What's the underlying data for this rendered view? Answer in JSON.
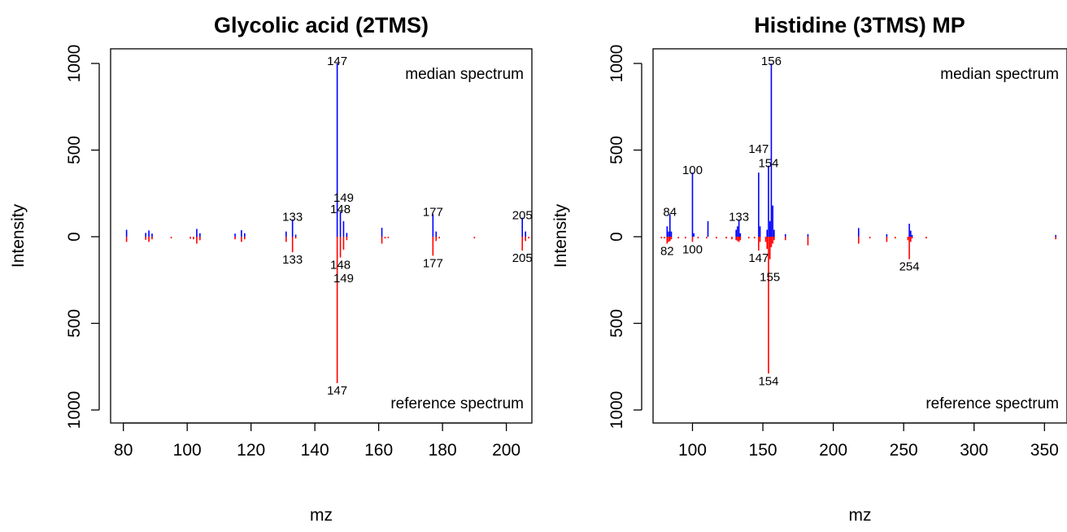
{
  "chart_data": [
    {
      "type": "bar",
      "title": "Glycolic acid (2TMS)",
      "xlabel": "mz",
      "ylabel": "Intensity",
      "xlim": [
        76,
        208
      ],
      "ylim": [
        -1000,
        1000
      ],
      "xticks": [
        80,
        100,
        120,
        140,
        160,
        180,
        200
      ],
      "yticks_top": [
        0,
        500,
        1000
      ],
      "yticks_bottom": [
        500,
        1000
      ],
      "annotations": {
        "top": "median spectrum",
        "bottom": "reference spectrum"
      },
      "series": [
        {
          "name": "median spectrum",
          "color": "#0000ff",
          "x": [
            81,
            87,
            88,
            89,
            103,
            104,
            115,
            117,
            118,
            131,
            133,
            134,
            147,
            148,
            149,
            150,
            161,
            177,
            178,
            205,
            206
          ],
          "values": [
            40,
            22,
            36,
            18,
            45,
            20,
            18,
            38,
            20,
            30,
            100,
            12,
            1000,
            145,
            90,
            22,
            52,
            130,
            30,
            110,
            30
          ]
        },
        {
          "name": "reference spectrum",
          "color": "#ff0000",
          "x": [
            81,
            87,
            88,
            89,
            95,
            101,
            102,
            103,
            104,
            115,
            117,
            118,
            131,
            133,
            134,
            147,
            148,
            149,
            150,
            161,
            162,
            163,
            177,
            178,
            179,
            190,
            205,
            206,
            207
          ],
          "values": [
            30,
            18,
            30,
            15,
            10,
            12,
            15,
            40,
            20,
            15,
            30,
            15,
            30,
            90,
            10,
            845,
            120,
            75,
            20,
            40,
            10,
            8,
            110,
            25,
            10,
            10,
            80,
            25,
            10
          ]
        }
      ],
      "peak_labels_top": [
        {
          "mz": 147,
          "label": "147"
        },
        {
          "mz": 133,
          "label": "133"
        },
        {
          "mz": 148,
          "label": "148"
        },
        {
          "mz": 149,
          "label": "149"
        },
        {
          "mz": 177,
          "label": "177"
        },
        {
          "mz": 205,
          "label": "205"
        }
      ],
      "peak_labels_bottom": [
        {
          "mz": 147,
          "label": "147"
        },
        {
          "mz": 133,
          "label": "133"
        },
        {
          "mz": 148,
          "label": "148"
        },
        {
          "mz": 149,
          "label": "149"
        },
        {
          "mz": 177,
          "label": "177"
        },
        {
          "mz": 205,
          "label": "205"
        }
      ]
    },
    {
      "type": "bar",
      "title": "Histidine (3TMS) MP",
      "xlabel": "mz",
      "ylabel": "Intensity",
      "xlim": [
        72,
        366
      ],
      "ylim": [
        -1000,
        1000
      ],
      "xticks": [
        100,
        150,
        200,
        250,
        300,
        350
      ],
      "yticks_top": [
        0,
        500,
        1000
      ],
      "yticks_bottom": [
        500,
        1000
      ],
      "annotations": {
        "top": "median spectrum",
        "bottom": "reference spectrum"
      },
      "series": [
        {
          "name": "median spectrum",
          "color": "#0000ff",
          "x": [
            82,
            83,
            84,
            85,
            100,
            101,
            111,
            131,
            132,
            133,
            134,
            147,
            148,
            153,
            154,
            155,
            156,
            157,
            158,
            166,
            182,
            218,
            238,
            254,
            255,
            256,
            358
          ],
          "values": [
            60,
            30,
            130,
            30,
            370,
            20,
            90,
            40,
            60,
            100,
            20,
            370,
            60,
            40,
            410,
            90,
            1000,
            180,
            40,
            15,
            15,
            50,
            15,
            75,
            35,
            10,
            10
          ]
        },
        {
          "name": "reference spectrum",
          "color": "#ff0000",
          "x": [
            78,
            80,
            82,
            83,
            84,
            85,
            90,
            95,
            100,
            104,
            110,
            117,
            124,
            128,
            131,
            132,
            133,
            134,
            140,
            144,
            147,
            148,
            152,
            153,
            154,
            155,
            156,
            157,
            158,
            166,
            182,
            218,
            226,
            238,
            244,
            253,
            254,
            255,
            256,
            266,
            358
          ],
          "values": [
            10,
            10,
            40,
            30,
            25,
            15,
            10,
            10,
            30,
            10,
            10,
            10,
            10,
            15,
            20,
            25,
            30,
            20,
            10,
            10,
            80,
            30,
            30,
            70,
            790,
            130,
            60,
            40,
            20,
            20,
            50,
            40,
            10,
            30,
            10,
            20,
            130,
            30,
            10,
            10,
            15
          ]
        }
      ],
      "peak_labels_top": [
        {
          "mz": 156,
          "label": "156"
        },
        {
          "mz": 154,
          "label": "154"
        },
        {
          "mz": 147,
          "label": "147"
        },
        {
          "mz": 100,
          "label": "100"
        },
        {
          "mz": 84,
          "label": "84"
        },
        {
          "mz": 133,
          "label": "133"
        }
      ],
      "peak_labels_bottom": [
        {
          "mz": 82,
          "label": "82"
        },
        {
          "mz": 100,
          "label": "100"
        },
        {
          "mz": 147,
          "label": "147"
        },
        {
          "mz": 155,
          "label": "155"
        },
        {
          "mz": 254,
          "label": "254"
        },
        {
          "mz": 154,
          "label": "154"
        }
      ]
    }
  ]
}
